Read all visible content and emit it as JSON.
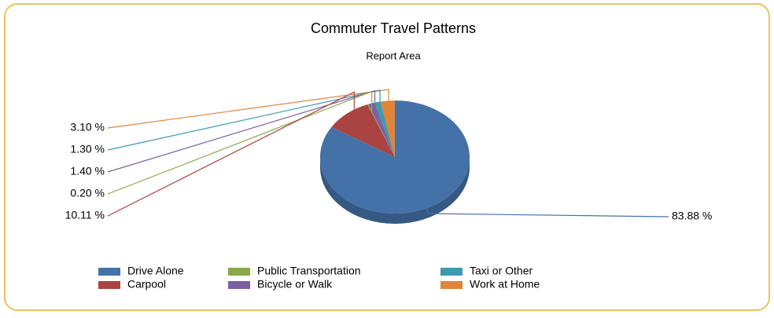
{
  "chart_data": {
    "type": "pie",
    "title": "Commuter Travel Patterns",
    "subtitle": "Report Area",
    "categories": [
      "Drive Alone",
      "Carpool",
      "Public Transportation",
      "Bicycle or Walk",
      "Taxi or Other",
      "Work at Home"
    ],
    "values": [
      83.88,
      10.11,
      0.2,
      1.4,
      1.3,
      3.1
    ],
    "value_labels": [
      "83.88 %",
      "10.11 %",
      "0.20 %",
      "1.40 %",
      "1.30 %",
      "3.10 %"
    ],
    "colors": [
      "#4472a8",
      "#a94442",
      "#8aa84a",
      "#7d60a0",
      "#3d9ab0",
      "#e0843a"
    ]
  }
}
